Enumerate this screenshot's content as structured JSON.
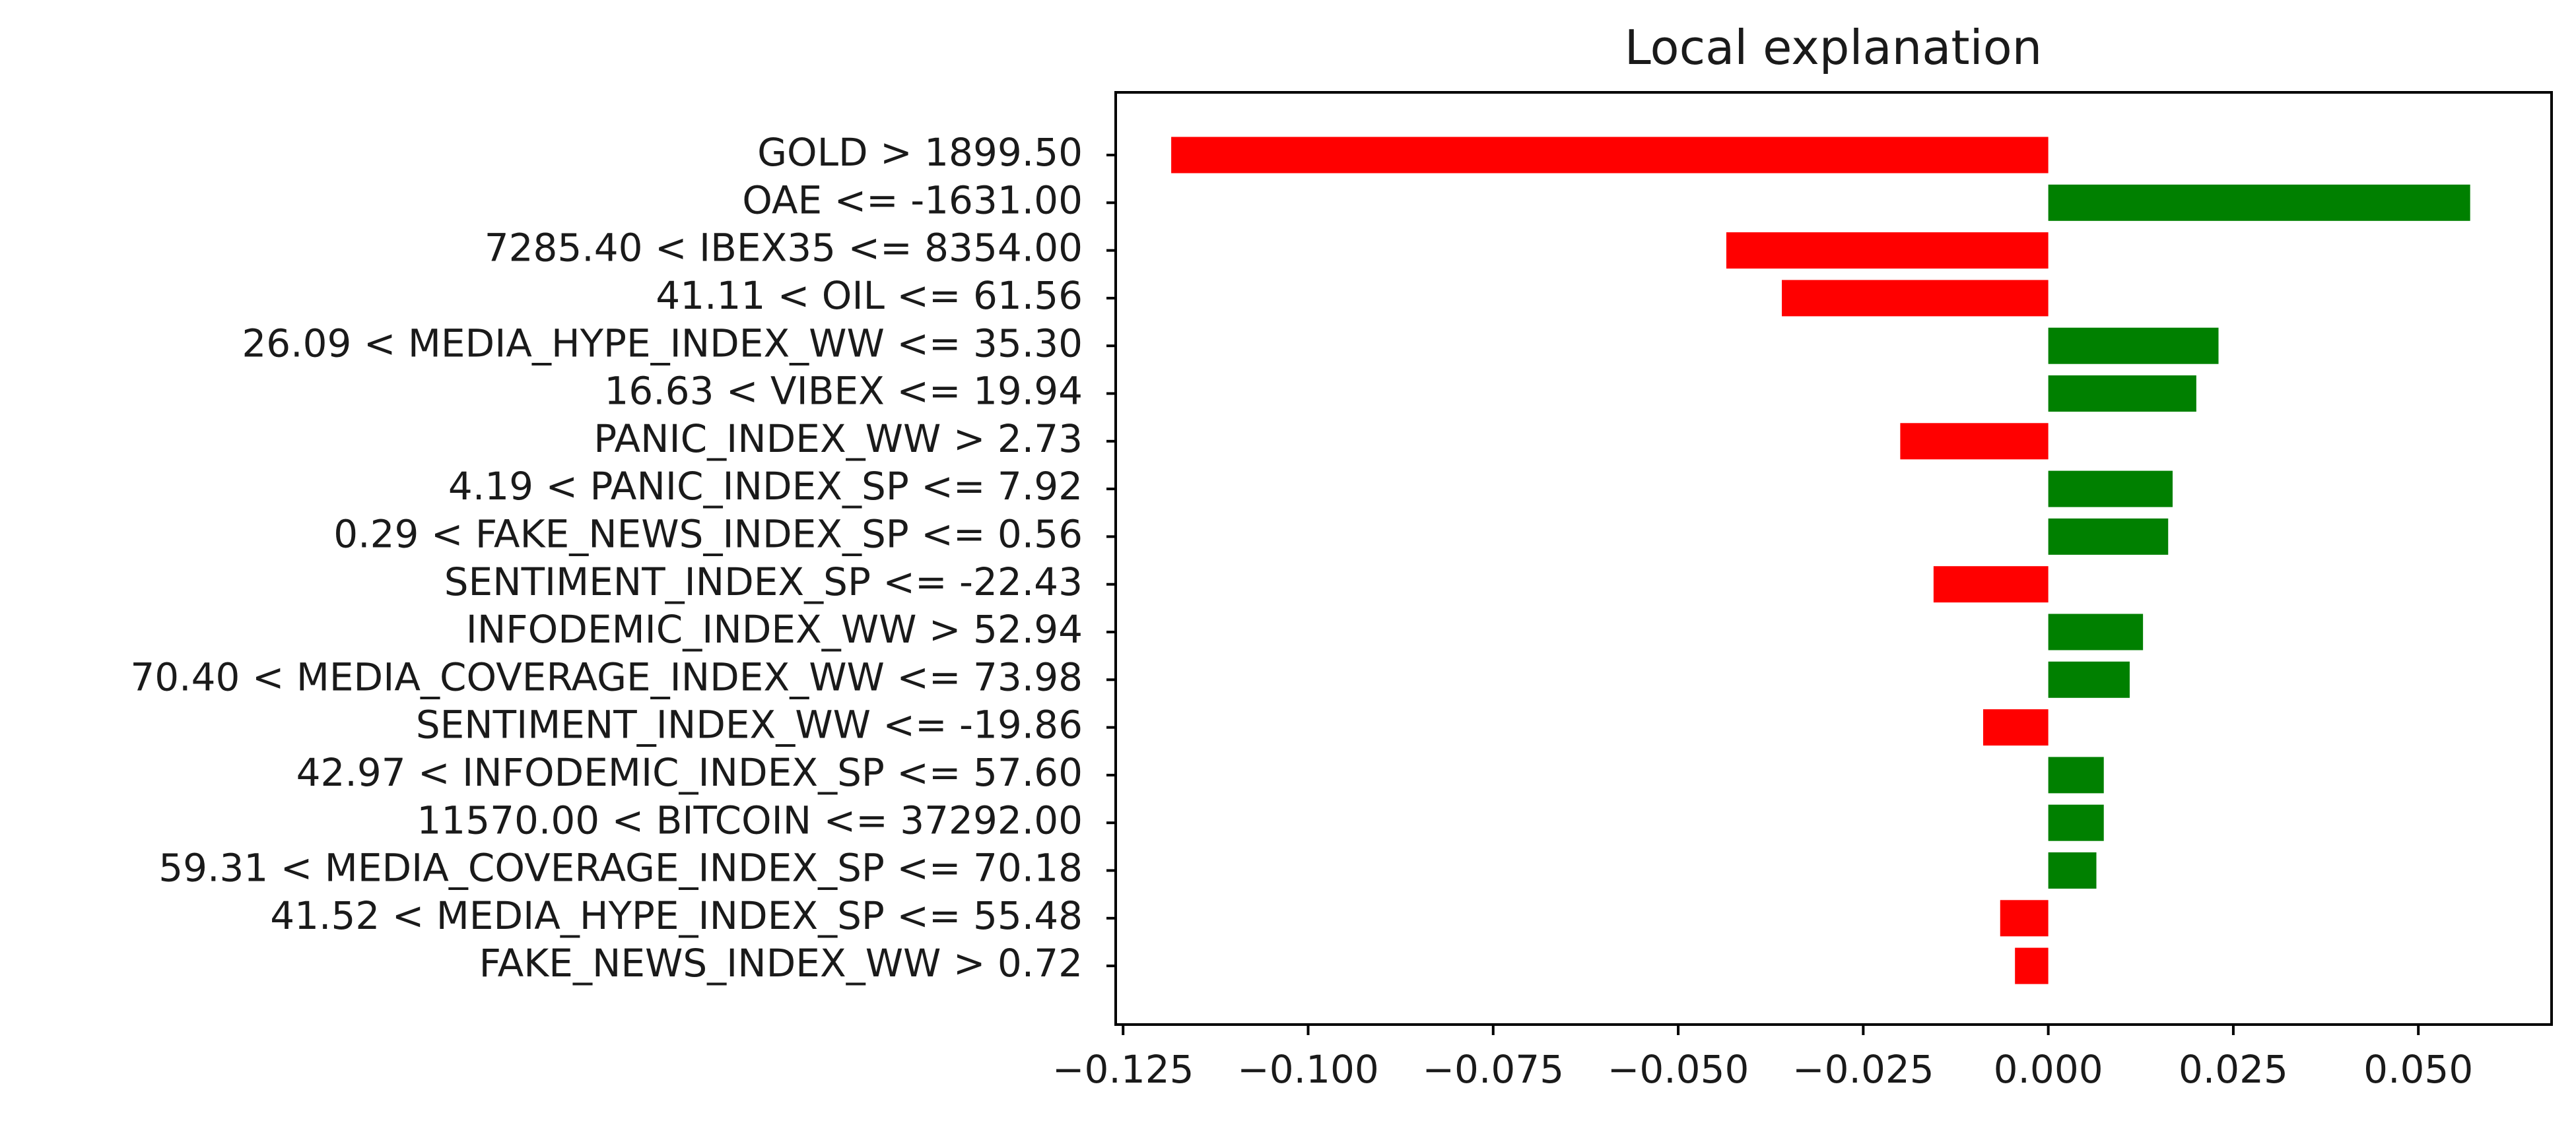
{
  "chart_data": {
    "type": "bar",
    "orientation": "horizontal",
    "title": "Local explanation",
    "xlabel": "",
    "ylabel": "",
    "xlim": [
      -0.126,
      0.068
    ],
    "xticks": [
      {
        "value": -0.125,
        "label": "−0.125"
      },
      {
        "value": -0.1,
        "label": "−0.100"
      },
      {
        "value": -0.075,
        "label": "−0.075"
      },
      {
        "value": -0.05,
        "label": "−0.050"
      },
      {
        "value": -0.025,
        "label": "−0.025"
      },
      {
        "value": 0.0,
        "label": "0.000"
      },
      {
        "value": 0.025,
        "label": "0.025"
      },
      {
        "value": 0.05,
        "label": "0.050"
      }
    ],
    "grid": false,
    "colors": {
      "positive": "#008000",
      "negative": "#ff0000"
    },
    "categories": [
      "GOLD > 1899.50",
      "OAE <= -1631.00",
      "7285.40 < IBEX35 <= 8354.00",
      "41.11 < OIL <= 61.56",
      "26.09 < MEDIA_HYPE_INDEX_WW <= 35.30",
      "16.63 < VIBEX <= 19.94",
      "PANIC_INDEX_WW > 2.73",
      "4.19 < PANIC_INDEX_SP <= 7.92",
      "0.29 < FAKE_NEWS_INDEX_SP <= 0.56",
      "SENTIMENT_INDEX_SP <= -22.43",
      "INFODEMIC_INDEX_WW > 52.94",
      "70.40 < MEDIA_COVERAGE_INDEX_WW <= 73.98",
      "SENTIMENT_INDEX_WW <= -19.86",
      "42.97 < INFODEMIC_INDEX_SP <= 57.60",
      "11570.00 < BITCOIN <= 37292.00",
      "59.31 < MEDIA_COVERAGE_INDEX_SP <= 70.18",
      "41.52 < MEDIA_HYPE_INDEX_SP <= 55.48",
      "FAKE_NEWS_INDEX_WW > 0.72"
    ],
    "values": [
      -0.1185,
      0.057,
      -0.0435,
      -0.036,
      0.023,
      0.02,
      -0.02,
      0.0168,
      0.0162,
      -0.0155,
      0.0128,
      0.011,
      -0.0088,
      0.0075,
      0.0075,
      0.0065,
      -0.0065,
      -0.0045
    ]
  }
}
